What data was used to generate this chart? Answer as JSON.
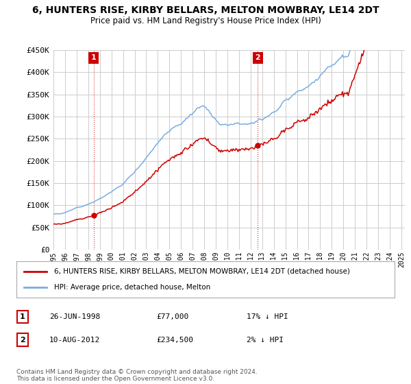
{
  "title": "6, HUNTERS RISE, KIRBY BELLARS, MELTON MOWBRAY, LE14 2DT",
  "subtitle": "Price paid vs. HM Land Registry's House Price Index (HPI)",
  "ylim": [
    0,
    450000
  ],
  "yticks": [
    0,
    50000,
    100000,
    150000,
    200000,
    250000,
    300000,
    350000,
    400000,
    450000
  ],
  "ytick_labels": [
    "£0",
    "£50K",
    "£100K",
    "£150K",
    "£200K",
    "£250K",
    "£300K",
    "£350K",
    "£400K",
    "£450K"
  ],
  "sale1_date": "26-JUN-1998",
  "sale1_price": 77000,
  "sale1_hpi_diff": "17% ↓ HPI",
  "sale1_year": 1998.46,
  "sale2_date": "10-AUG-2012",
  "sale2_price": 234500,
  "sale2_hpi_diff": "2% ↓ HPI",
  "sale2_year": 2012.61,
  "legend_property": "6, HUNTERS RISE, KIRBY BELLARS, MELTON MOWBRAY, LE14 2DT (detached house)",
  "legend_hpi": "HPI: Average price, detached house, Melton",
  "footer": "Contains HM Land Registry data © Crown copyright and database right 2024.\nThis data is licensed under the Open Government Licence v3.0.",
  "line_color_property": "#cc0000",
  "line_color_hpi": "#7aace0",
  "annotation_box_color": "#cc0000",
  "grid_color": "#cccccc",
  "bg_color": "#ffffff"
}
